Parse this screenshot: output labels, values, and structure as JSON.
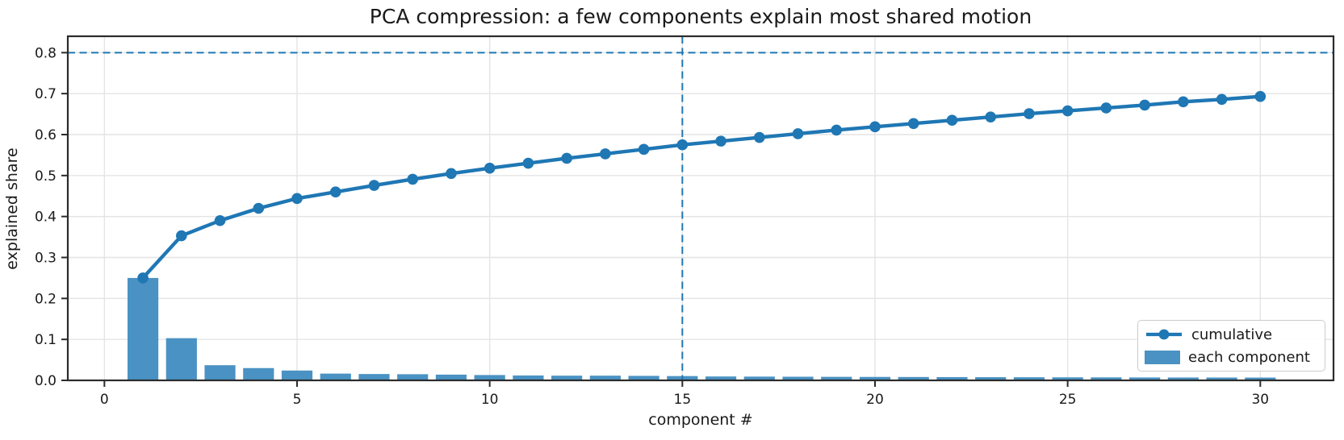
{
  "chart_data": {
    "type": "combo",
    "title": "PCA compression: a few components explain most shared motion",
    "xlabel": "component #",
    "ylabel": "explained share",
    "x": [
      1,
      2,
      3,
      4,
      5,
      6,
      7,
      8,
      9,
      10,
      11,
      12,
      13,
      14,
      15,
      16,
      17,
      18,
      19,
      20,
      21,
      22,
      23,
      24,
      25,
      26,
      27,
      28,
      29,
      30
    ],
    "series": [
      {
        "name": "cumulative",
        "type": "line",
        "marker": "circle",
        "values": [
          0.25,
          0.353,
          0.39,
          0.42,
          0.444,
          0.46,
          0.476,
          0.491,
          0.505,
          0.518,
          0.53,
          0.542,
          0.553,
          0.564,
          0.575,
          0.584,
          0.593,
          0.602,
          0.611,
          0.619,
          0.627,
          0.635,
          0.643,
          0.651,
          0.658,
          0.665,
          0.672,
          0.68,
          0.686,
          0.693
        ]
      },
      {
        "name": "each component",
        "type": "bar",
        "values": [
          0.25,
          0.103,
          0.037,
          0.03,
          0.024,
          0.0165,
          0.0155,
          0.015,
          0.014,
          0.013,
          0.012,
          0.0115,
          0.0115,
          0.011,
          0.0105,
          0.0095,
          0.0092,
          0.0089,
          0.0086,
          0.0084,
          0.0082,
          0.008,
          0.0078,
          0.0076,
          0.0074,
          0.0073,
          0.0071,
          0.007,
          0.0069,
          0.0068
        ]
      }
    ],
    "xticks": [
      0,
      5,
      10,
      15,
      20,
      25,
      30
    ],
    "ytick_labels": [
      "0.0",
      "0.1",
      "0.2",
      "0.3",
      "0.4",
      "0.5",
      "0.6",
      "0.7",
      "0.8"
    ],
    "ytick_values": [
      0,
      0.1,
      0.2,
      0.3,
      0.4,
      0.5,
      0.6,
      0.7,
      0.8
    ],
    "xlim": [
      -0.95,
      31.9
    ],
    "ylim": [
      0,
      0.84
    ],
    "grid": true,
    "threshold_line": {
      "orientation": "horizontal",
      "value": 0.8,
      "style": "dashed"
    },
    "component_marker_line": {
      "orientation": "vertical",
      "value": 15,
      "style": "dashed"
    },
    "legend": {
      "position": "lower right",
      "entries": [
        "cumulative",
        "each component"
      ]
    },
    "colors": {
      "line": "#1f77b4",
      "bar": "#4a92c3",
      "dashed": "#1f77b4",
      "grid": "#e4e4e4",
      "spine": "#2b2b2b",
      "text": "#1a1a1a"
    }
  }
}
